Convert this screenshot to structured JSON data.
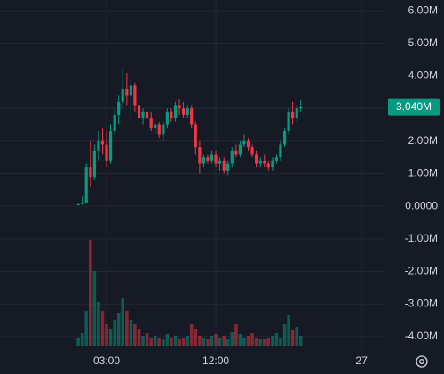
{
  "chart_data": {
    "type": "candlestick",
    "x": [
      0.67,
      1,
      1.33,
      1.67,
      2,
      2.33,
      2.67,
      3,
      3.33,
      3.67,
      4,
      4.33,
      4.67,
      5,
      5.33,
      5.67,
      6,
      6.33,
      6.67,
      7,
      7.33,
      7.67,
      8,
      8.33,
      8.67,
      9,
      9.33,
      9.67,
      10,
      10.33,
      10.67,
      11,
      11.33,
      11.67,
      12,
      12.33,
      12.67,
      13,
      13.33,
      13.67,
      14,
      14.33,
      14.67,
      15,
      15.33,
      15.67,
      16,
      16.33,
      16.67,
      17,
      17.33,
      17.67,
      18,
      18.33,
      18.67,
      19
    ],
    "open": [
      50000,
      60000,
      100000,
      1200000,
      900000,
      1700000,
      2000000,
      1900000,
      1400000,
      2300000,
      2800000,
      3200000,
      3600000,
      3400000,
      3700000,
      3100000,
      2700000,
      2900000,
      2700000,
      2400000,
      2500000,
      2200000,
      2500000,
      2900000,
      2700000,
      3100000,
      3000000,
      2800000,
      3000000,
      2500000,
      1800000,
      1300000,
      1500000,
      1400000,
      1600000,
      1300000,
      1400000,
      1100000,
      1300000,
      1700000,
      1600000,
      1900000,
      2000000,
      1800000,
      1600000,
      1300000,
      1400000,
      1300000,
      1200000,
      1400000,
      1500000,
      1900000,
      2300000,
      2900000,
      2700000,
      3000000
    ],
    "high": [
      80000,
      300000,
      1300000,
      2000000,
      1900000,
      2300000,
      2400000,
      2300000,
      2500000,
      3000000,
      3400000,
      4200000,
      4100000,
      3900000,
      3800000,
      3400000,
      3000000,
      3200000,
      2900000,
      2600000,
      2600000,
      2600000,
      3000000,
      3000000,
      3200000,
      3300000,
      3200000,
      3100000,
      3100000,
      2600000,
      2000000,
      1600000,
      1600000,
      1700000,
      1700000,
      1500000,
      1500000,
      1400000,
      1800000,
      1900000,
      2000000,
      2200000,
      2100000,
      1900000,
      1700000,
      1500000,
      1600000,
      1400000,
      1500000,
      1600000,
      2000000,
      2400000,
      3000000,
      3200000,
      3100000,
      3250000
    ],
    "low": [
      40000,
      50000,
      100000,
      600000,
      800000,
      1400000,
      1600000,
      1200000,
      1300000,
      2200000,
      2500000,
      3000000,
      3100000,
      2700000,
      2900000,
      2500000,
      2500000,
      2600000,
      2300000,
      2200000,
      2100000,
      2000000,
      2400000,
      2600000,
      2600000,
      2800000,
      2700000,
      2700000,
      2400000,
      1600000,
      1000000,
      1200000,
      1300000,
      1300000,
      1200000,
      1100000,
      1000000,
      950000,
      1200000,
      1500000,
      1500000,
      1800000,
      1700000,
      1500000,
      1200000,
      1200000,
      1200000,
      1100000,
      1100000,
      1300000,
      1400000,
      1800000,
      2200000,
      2500000,
      2600000,
      2900000
    ],
    "close": [
      60000,
      80000,
      1200000,
      900000,
      1700000,
      2000000,
      1900000,
      1400000,
      2300000,
      2800000,
      3200000,
      3600000,
      3400000,
      3700000,
      3100000,
      2700000,
      2900000,
      2700000,
      2400000,
      2500000,
      2200000,
      2500000,
      2900000,
      2700000,
      3100000,
      3000000,
      2800000,
      3000000,
      2500000,
      1800000,
      1300000,
      1500000,
      1400000,
      1600000,
      1300000,
      1400000,
      1100000,
      1300000,
      1700000,
      1600000,
      1900000,
      2000000,
      1800000,
      1600000,
      1300000,
      1400000,
      1300000,
      1200000,
      1400000,
      1500000,
      1900000,
      2300000,
      2900000,
      2700000,
      3000000,
      3040000
    ],
    "volume": [
      10,
      15,
      40,
      120,
      85,
      50,
      40,
      25,
      20,
      30,
      38,
      55,
      40,
      30,
      25,
      20,
      12,
      15,
      10,
      12,
      10,
      8,
      14,
      10,
      12,
      8,
      10,
      12,
      25,
      20,
      12,
      10,
      8,
      12,
      14,
      10,
      12,
      8,
      16,
      25,
      14,
      10,
      12,
      15,
      10,
      8,
      8,
      10,
      12,
      15,
      10,
      25,
      35,
      18,
      22,
      12
    ],
    "up_color": "#089981",
    "down_color": "#f23645",
    "xlim": [
      -5.78,
      26.04
    ],
    "xticks": [
      {
        "value": 3,
        "label": "03:00"
      },
      {
        "value": 12,
        "label": "12:00"
      },
      {
        "value": 24,
        "label": "27"
      }
    ],
    "ylim": [
      -4440000,
      6330000
    ],
    "yticks": [
      {
        "value": 6000000,
        "label": "6.00M"
      },
      {
        "value": 5000000,
        "label": "5.00M"
      },
      {
        "value": 4000000,
        "label": "4.00M"
      },
      {
        "value": 3000000,
        "label": "3.00M"
      },
      {
        "value": 2000000,
        "label": "2.00M"
      },
      {
        "value": 1000000,
        "label": "1.00M"
      },
      {
        "value": 0,
        "label": "0.0000"
      },
      {
        "value": -1000000,
        "label": "-1.00M"
      },
      {
        "value": -2000000,
        "label": "-2.00M"
      },
      {
        "value": -3000000,
        "label": "-3.00M"
      },
      {
        "value": -4000000,
        "label": "-4.00M"
      }
    ],
    "last_price": {
      "value": 3040000,
      "label": "3.040M"
    },
    "grid": true
  }
}
